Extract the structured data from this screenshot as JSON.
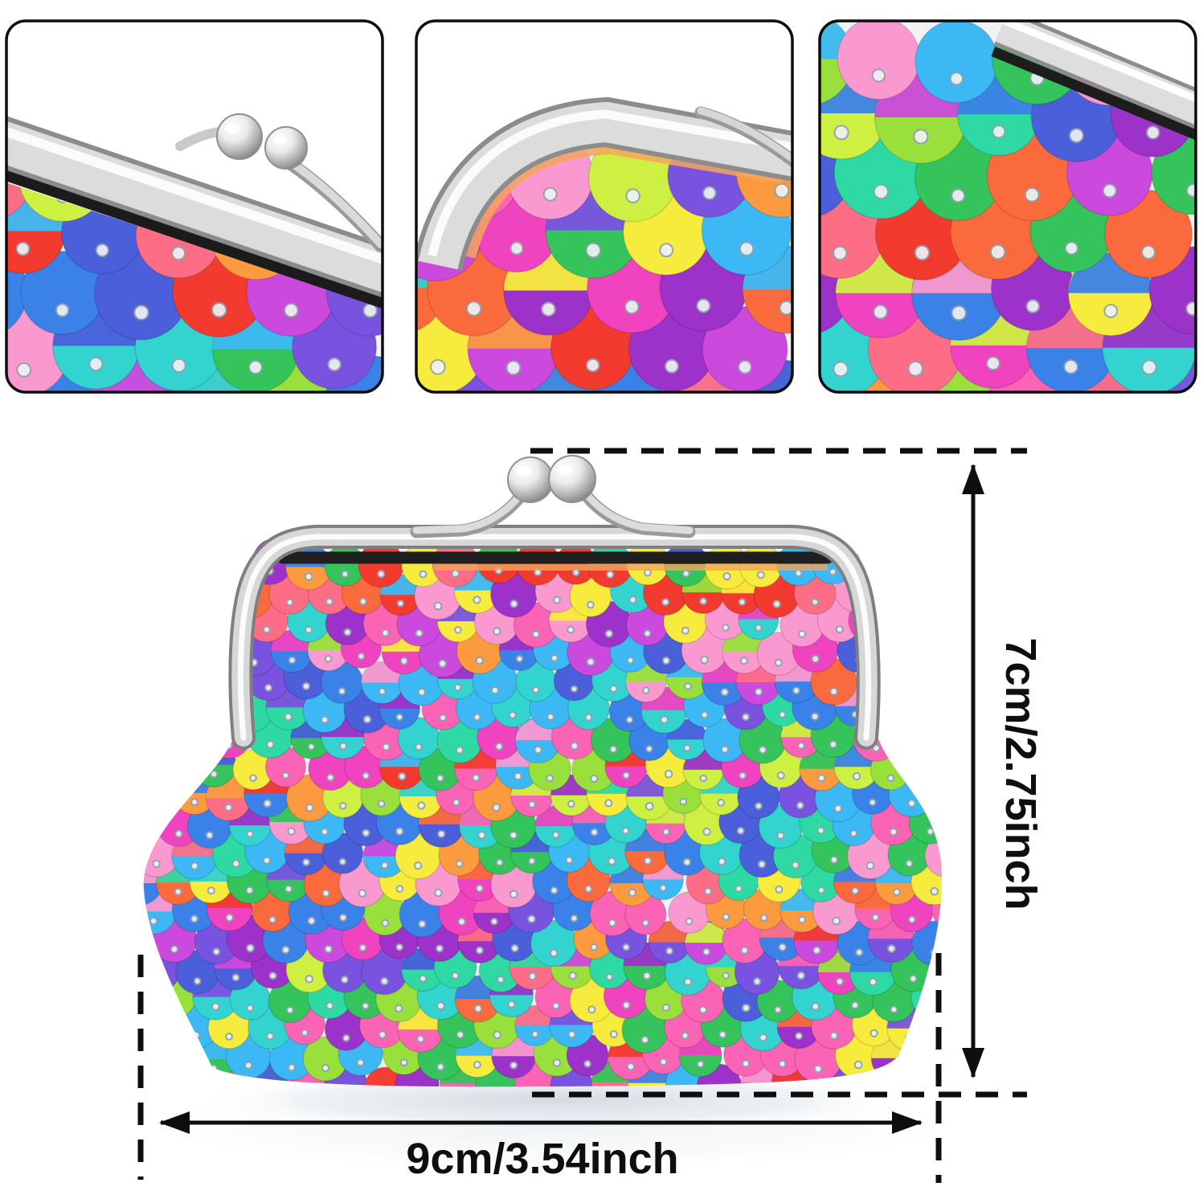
{
  "annotations": {
    "height_label": "7cm/2.75inch",
    "width_label": "9cm/3.54inch"
  },
  "colors": {
    "background": "#ffffff",
    "annotation_line": "#111111",
    "panel_border": "#0d0d0d",
    "silver_dark": "#8c8c8c",
    "silver_mid": "#dcdcdc",
    "silver_light": "#fbfbfb",
    "clasp_slot": "#1b1b1b",
    "mesh_base": "#f0f2f4",
    "shadow": "#c9d3da",
    "sequin_palette": [
      "#f23b2e",
      "#fa6a3c",
      "#fb9a3f",
      "#f7ec3d",
      "#cdf043",
      "#9ae03c",
      "#35c45c",
      "#2ed9a3",
      "#33d3cf",
      "#3cb9f5",
      "#3b82e8",
      "#4a5fd9",
      "#7a52e0",
      "#9c32c9",
      "#cc49dd",
      "#ef43c0",
      "#fb63b4",
      "#f999cf",
      "#fd6e86"
    ]
  }
}
